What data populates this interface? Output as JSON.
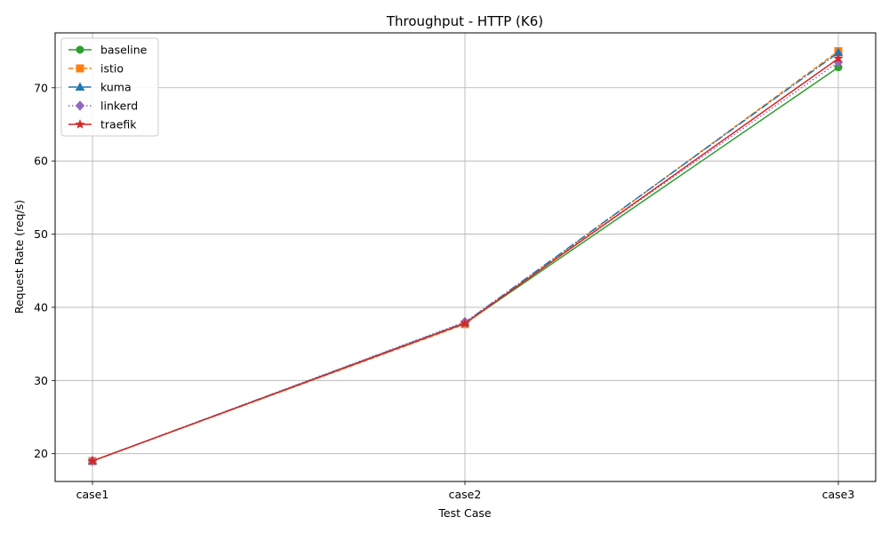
{
  "chart_data": {
    "type": "line",
    "title": "Throughput - HTTP (K6)",
    "xlabel": "Test Case",
    "ylabel": "Request Rate (req/s)",
    "categories": [
      "case1",
      "case2",
      "case3"
    ],
    "ylim": [
      16.2,
      77.5
    ],
    "yticks": [
      20,
      30,
      40,
      50,
      60,
      70
    ],
    "grid": true,
    "legend_position": "top-left",
    "series": [
      {
        "name": "baseline",
        "values": [
          19.0,
          37.8,
          72.8
        ],
        "color": "#2ca02c",
        "dash": "solid",
        "marker": "circle"
      },
      {
        "name": "istio",
        "values": [
          19.0,
          37.7,
          75.0
        ],
        "color": "#ff7f0e",
        "dash": "dashed",
        "marker": "square"
      },
      {
        "name": "kuma",
        "values": [
          19.0,
          37.9,
          74.8
        ],
        "color": "#1f77b4",
        "dash": "dashdot",
        "marker": "triangle"
      },
      {
        "name": "linkerd",
        "values": [
          19.0,
          38.0,
          73.5
        ],
        "color": "#9467bd",
        "dash": "dotted",
        "marker": "diamond"
      },
      {
        "name": "traefik",
        "values": [
          19.0,
          37.8,
          74.0
        ],
        "color": "#d62728",
        "dash": "solid",
        "marker": "star"
      }
    ]
  }
}
